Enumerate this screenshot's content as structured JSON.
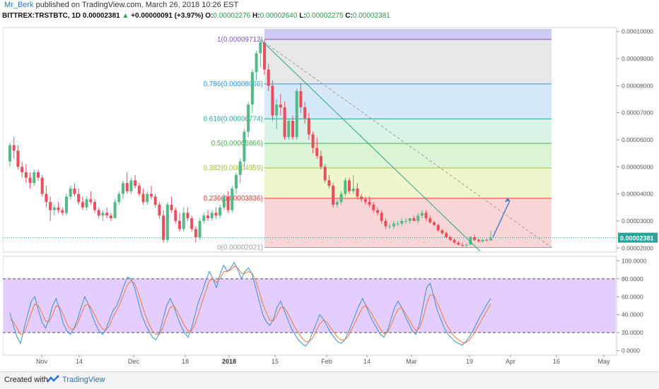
{
  "header": {
    "user": "Mr_Berk",
    "published": "published on TradingView.com, March 26, 2018 10:26 EST",
    "symbol": "BITTREX:TRSTBTC, 1D",
    "last": "0.00002381",
    "change": "+0.00000091 (+3.97%)",
    "o_label": "O:",
    "o_val": "0.00002276",
    "h_label": "H:",
    "h_val": "0.00002640",
    "l_label": "L:",
    "l_val": "0.00002275",
    "c_label": "C:",
    "c_val": "0.00002381"
  },
  "footer": {
    "created_with": "Created with",
    "brand": "TradingView"
  },
  "colors": {
    "up": "#53b987",
    "down": "#eb4d5c",
    "rsi_k": "#3b8fd8",
    "rsi_d": "#f0793a",
    "trend": "#2aa87c",
    "arrow": "#4a7fd0",
    "price_line": "#26a69a",
    "rsi_band": "#d9b8ff"
  },
  "chart_data": [
    {
      "type": "candlestick",
      "title": "BITTREX:TRSTBTC, 1D",
      "price_axis_ticks": [
        "0.00010000",
        "0.00009000",
        "0.00008000",
        "0.00007000",
        "0.00006000",
        "0.00005000",
        "0.00004000",
        "0.00003000",
        "0.00002000"
      ],
      "price_axis_values": [
        0.0001,
        9e-05,
        8e-05,
        7e-05,
        6e-05,
        5e-05,
        4e-05,
        3e-05,
        2e-05
      ],
      "x_axis_ticks": [
        "Nov",
        "14",
        "Dec",
        "18",
        "2018",
        "15",
        "Feb",
        "14",
        "Mar",
        "19",
        "Apr",
        "16",
        "May"
      ],
      "ylim": [
        1.85e-05,
        0.0001015
      ],
      "last_price_label": "0.00002381",
      "last_price": 2.381e-05,
      "fibonacci": [
        {
          "label": "1(0.00009712)",
          "level": 9.712e-05,
          "color": "#7e57c2",
          "fill": "#c9c4f5"
        },
        {
          "label": "0.786(0.00008066)",
          "level": 8.066e-05,
          "color": "#2196f3",
          "fill": "#e3e3e3"
        },
        {
          "label": "0.618(0.00006774)",
          "level": 6.774e-05,
          "color": "#26a69a",
          "fill": "#cfe5f7"
        },
        {
          "label": "0.5(0.00005866)",
          "level": 5.866e-05,
          "color": "#4caf50",
          "fill": "#d2f1e3"
        },
        {
          "label": "0.382(0.00004959)",
          "level": 4.959e-05,
          "color": "#9bc53d",
          "fill": "#d6f2cf"
        },
        {
          "label": "0.236(0.00003836)",
          "level": 3.836e-05,
          "color": "#e53935",
          "fill": "#ecf5c6"
        },
        {
          "label": "0(0.00002021)",
          "level": 2.021e-05,
          "color": "#9e9e9e",
          "fill": "#f7cfd0"
        }
      ],
      "candles_ohlc": [
        [
          5.2e-05,
          5.9e-05,
          5e-05,
          5.8e-05
        ],
        [
          5.8e-05,
          6.1e-05,
          5.3e-05,
          5.6e-05
        ],
        [
          5.6e-05,
          5.8e-05,
          4.9e-05,
          5e-05
        ],
        [
          5e-05,
          5.2e-05,
          4.6e-05,
          4.8e-05
        ],
        [
          4.8e-05,
          5.1e-05,
          4.4e-05,
          4.6e-05
        ],
        [
          4.6e-05,
          4.8e-05,
          4.2e-05,
          4.4e-05
        ],
        [
          4.4e-05,
          4.9e-05,
          4.3e-05,
          4.8e-05
        ],
        [
          4.8e-05,
          4.9e-05,
          4.5e-05,
          4.6e-05
        ],
        [
          4.6e-05,
          4.7e-05,
          3.9e-05,
          4e-05
        ],
        [
          4e-05,
          4.3e-05,
          3.5e-05,
          3.7e-05
        ],
        [
          3.7e-05,
          3.9e-05,
          3e-05,
          3.4e-05
        ],
        [
          3.4e-05,
          3.6e-05,
          3.2e-05,
          3.5e-05
        ],
        [
          3.5e-05,
          3.7e-05,
          3.3e-05,
          3.4e-05
        ],
        [
          3.4e-05,
          3.5e-05,
          3.2e-05,
          3.3e-05
        ],
        [
          3.3e-05,
          4e-05,
          3.2e-05,
          3.9e-05
        ],
        [
          3.9e-05,
          4.3e-05,
          3.8e-05,
          4.2e-05
        ],
        [
          4.2e-05,
          4.4e-05,
          3.9e-05,
          4e-05
        ],
        [
          4e-05,
          4.2e-05,
          3.6e-05,
          3.7e-05
        ],
        [
          3.7e-05,
          3.9e-05,
          3.4e-05,
          3.5e-05
        ],
        [
          3.5e-05,
          3.9e-05,
          3.4e-05,
          3.8e-05
        ],
        [
          3.8e-05,
          4.1e-05,
          3.6e-05,
          3.7e-05
        ],
        [
          3.7e-05,
          3.8e-05,
          3.3e-05,
          3.4e-05
        ],
        [
          3.4e-05,
          3.5e-05,
          3.1e-05,
          3.2e-05
        ],
        [
          3.2e-05,
          3.4e-05,
          3e-05,
          3.3e-05
        ],
        [
          3.3e-05,
          3.5e-05,
          3.1e-05,
          3.2e-05
        ],
        [
          3.2e-05,
          3.3e-05,
          3e-05,
          3.1e-05
        ],
        [
          3.1e-05,
          3.8e-05,
          3.1e-05,
          3.7e-05
        ],
        [
          3.7e-05,
          4.1e-05,
          3.6e-05,
          4e-05
        ],
        [
          4e-05,
          4.5e-05,
          3.8e-05,
          4.4e-05
        ],
        [
          4.4e-05,
          4.8e-05,
          4e-05,
          4.1e-05
        ],
        [
          4.1e-05,
          4.6e-05,
          4e-05,
          4.5e-05
        ],
        [
          4.5e-05,
          4.7e-05,
          4.2e-05,
          4.3e-05
        ],
        [
          4.3e-05,
          4.4e-05,
          3.9e-05,
          4e-05
        ],
        [
          4e-05,
          4.2e-05,
          3.6e-05,
          3.7e-05
        ],
        [
          3.7e-05,
          4.1e-05,
          3.6e-05,
          4e-05
        ],
        [
          4e-05,
          4.3e-05,
          3.8e-05,
          3.9e-05
        ],
        [
          3.9e-05,
          4e-05,
          3.5e-05,
          3.6e-05
        ],
        [
          3.6e-05,
          3.7e-05,
          3.1e-05,
          3.2e-05
        ],
        [
          3.2e-05,
          3.4e-05,
          2.2e-05,
          2.3e-05
        ],
        [
          2.3e-05,
          3.7e-05,
          2.2e-05,
          3.6e-05
        ],
        [
          3.6e-05,
          3.9e-05,
          3.3e-05,
          3.4e-05
        ],
        [
          3.4e-05,
          3.5e-05,
          2.9e-05,
          3e-05
        ],
        [
          3e-05,
          3.3e-05,
          2.6e-05,
          2.7e-05
        ],
        [
          2.7e-05,
          3.5e-05,
          2.6e-05,
          3.3e-05
        ],
        [
          3.3e-05,
          3.5e-05,
          3e-05,
          3.1e-05
        ],
        [
          3.1e-05,
          3.2e-05,
          2.6e-05,
          2.7e-05
        ],
        [
          2.7e-05,
          2.8e-05,
          2.2e-05,
          2.4e-05
        ],
        [
          2.4e-05,
          3.1e-05,
          2.3e-05,
          3e-05
        ],
        [
          3e-05,
          3.3e-05,
          2.9e-05,
          3.2e-05
        ],
        [
          3.2e-05,
          3.4e-05,
          3e-05,
          3.1e-05
        ],
        [
          3.1e-05,
          3.4e-05,
          3e-05,
          3.3e-05
        ],
        [
          3.3e-05,
          3.5e-05,
          3.1e-05,
          3.2e-05
        ],
        [
          3.2e-05,
          3.6e-05,
          3.1e-05,
          3.5e-05
        ],
        [
          3.5e-05,
          4e-05,
          3.4e-05,
          3.9e-05
        ],
        [
          3.9e-05,
          4.1e-05,
          3.3e-05,
          3.4e-05
        ],
        [
          3.4e-05,
          4.3e-05,
          3.3e-05,
          4.2e-05
        ],
        [
          4.2e-05,
          4.8e-05,
          4e-05,
          4.7e-05
        ],
        [
          4.7e-05,
          5.3e-05,
          4.4e-05,
          5.2e-05
        ],
        [
          5.2e-05,
          6.4e-05,
          5e-05,
          6.3e-05
        ],
        [
          6.3e-05,
          7.4e-05,
          6.1e-05,
          7.3e-05
        ],
        [
          7.3e-05,
          8.6e-05,
          7e-05,
          8.5e-05
        ],
        [
          8.5e-05,
          9.3e-05,
          8.2e-05,
          9.2e-05
        ],
        [
          9.2e-05,
          9.71e-05,
          8.7e-05,
          9.6e-05
        ],
        [
          9.6e-05,
          9.7e-05,
          8.4e-05,
          8.6e-05
        ],
        [
          8.6e-05,
          8.8e-05,
          7.8e-05,
          8e-05
        ],
        [
          8e-05,
          8.2e-05,
          6.7e-05,
          6.9e-05
        ],
        [
          6.9e-05,
          7.5e-05,
          6.4e-05,
          7.3e-05
        ],
        [
          7.3e-05,
          7.7e-05,
          6.9e-05,
          7.2e-05
        ],
        [
          7.2e-05,
          7.4e-05,
          6e-05,
          6.1e-05
        ],
        [
          6.1e-05,
          6.8e-05,
          6e-05,
          6.7e-05
        ],
        [
          6.7e-05,
          6.9e-05,
          6e-05,
          6.1e-05
        ],
        [
          6.1e-05,
          7.9e-05,
          6e-05,
          7.8e-05
        ],
        [
          7.8e-05,
          8.1e-05,
          7e-05,
          7.2e-05
        ],
        [
          7.2e-05,
          7.4e-05,
          6.6e-05,
          6.8e-05
        ],
        [
          6.8e-05,
          7e-05,
          6e-05,
          6.2e-05
        ],
        [
          6.2e-05,
          6.3e-05,
          5.5e-05,
          5.7e-05
        ],
        [
          5.7e-05,
          6.1e-05,
          5.3e-05,
          5.4e-05
        ],
        [
          5.4e-05,
          5.6e-05,
          4.9e-05,
          5e-05
        ],
        [
          5e-05,
          5.1e-05,
          4.4e-05,
          4.5e-05
        ],
        [
          4.5e-05,
          4.7e-05,
          4.2e-05,
          4.3e-05
        ],
        [
          4.3e-05,
          4.4e-05,
          3.5e-05,
          3.6e-05
        ],
        [
          3.6e-05,
          3.8e-05,
          3.5e-05,
          3.7e-05
        ],
        [
          3.7e-05,
          4.1e-05,
          3.6e-05,
          4e-05
        ],
        [
          4e-05,
          4.6e-05,
          3.9e-05,
          4.5e-05
        ],
        [
          4.5e-05,
          4.6e-05,
          4e-05,
          4.1e-05
        ],
        [
          4.1e-05,
          4.7e-05,
          4e-05,
          4.2e-05
        ],
        [
          4.2e-05,
          4.4e-05,
          3.8e-05,
          3.9e-05
        ],
        [
          3.9e-05,
          4e-05,
          3.7e-05,
          3.8e-05
        ],
        [
          3.8e-05,
          3.9e-05,
          3.6e-05,
          3.7e-05
        ],
        [
          3.7e-05,
          3.9e-05,
          3.5e-05,
          3.6e-05
        ],
        [
          3.6e-05,
          3.7e-05,
          3.3e-05,
          3.4e-05
        ],
        [
          3.4e-05,
          3.5e-05,
          3.2e-05,
          3.3e-05
        ],
        [
          3.3e-05,
          3.4e-05,
          2.9e-05,
          3e-05
        ],
        [
          3e-05,
          3.1e-05,
          2.7e-05,
          2.8e-05
        ],
        [
          2.8e-05,
          2.9e-05,
          2.7e-05,
          2.8e-05
        ],
        [
          2.8e-05,
          3e-05,
          2.7e-05,
          2.9e-05
        ],
        [
          2.9e-05,
          3e-05,
          2.8e-05,
          2.9e-05
        ],
        [
          2.9e-05,
          3.1e-05,
          2.8e-05,
          3e-05
        ],
        [
          3e-05,
          3.1e-05,
          2.9e-05,
          3e-05
        ],
        [
          3e-05,
          3.1e-05,
          2.9e-05,
          3.1e-05
        ],
        [
          3.1e-05,
          3.2e-05,
          3e-05,
          3e-05
        ],
        [
          3e-05,
          3.3e-05,
          2.9e-05,
          3.2e-05
        ],
        [
          3.2e-05,
          3.4e-05,
          3.1e-05,
          3.3e-05
        ],
        [
          3.3e-05,
          3.4e-05,
          3e-05,
          3.1e-05
        ],
        [
          3.1e-05,
          3.2e-05,
          2.9e-05,
          2.95e-05
        ],
        [
          2.95e-05,
          3e-05,
          2.8e-05,
          2.85e-05
        ],
        [
          2.85e-05,
          2.9e-05,
          2.6e-05,
          2.65e-05
        ],
        [
          2.65e-05,
          2.7e-05,
          2.5e-05,
          2.55e-05
        ],
        [
          2.55e-05,
          2.6e-05,
          2.35e-05,
          2.4e-05
        ],
        [
          2.4e-05,
          2.45e-05,
          2.25e-05,
          2.3e-05
        ],
        [
          2.3e-05,
          2.35e-05,
          2.15e-05,
          2.2e-05
        ],
        [
          2.2e-05,
          2.25e-05,
          2.1e-05,
          2.12e-05
        ],
        [
          2.12e-05,
          2.2e-05,
          2.03e-05,
          2.1e-05
        ],
        [
          2.1e-05,
          2.15e-05,
          2.021e-05,
          2.13e-05
        ],
        [
          2.13e-05,
          2.45e-05,
          2.1e-05,
          2.4e-05
        ],
        [
          2.4e-05,
          2.5e-05,
          2.25e-05,
          2.3e-05
        ],
        [
          2.3e-05,
          2.35e-05,
          2.2e-05,
          2.25e-05
        ],
        [
          2.25e-05,
          2.35e-05,
          2.2e-05,
          2.3e-05
        ],
        [
          2.3e-05,
          2.34e-05,
          2.25e-05,
          2.28e-05
        ],
        [
          2.28e-05,
          2.64e-05,
          2.275e-05,
          2.381e-05
        ]
      ]
    },
    {
      "type": "line",
      "title": "",
      "y_axis_ticks": [
        "100.0000",
        "80.0000",
        "60.0000",
        "40.0000",
        "20.0000",
        "0.0000"
      ],
      "y_axis_values": [
        100,
        80,
        60,
        40,
        20,
        0
      ],
      "ylim": [
        -5,
        105
      ],
      "bands": [
        80,
        20
      ],
      "series": [
        {
          "values": [
            42,
            28,
            15,
            8,
            25,
            40,
            55,
            60,
            45,
            32,
            25,
            35,
            50,
            58,
            45,
            30,
            22,
            18,
            25,
            35,
            48,
            60,
            52,
            40,
            30,
            22,
            18,
            24,
            35,
            45,
            50,
            60,
            72,
            82,
            80,
            70,
            55,
            40,
            30,
            22,
            15,
            12,
            20,
            35,
            50,
            58,
            50,
            38,
            28,
            20,
            15,
            25,
            40,
            55,
            65,
            78,
            88,
            80,
            70,
            85,
            95,
            88,
            92,
            98,
            90,
            80,
            88,
            92,
            85,
            70,
            55,
            40,
            32,
            28,
            35,
            48,
            55,
            45,
            35,
            25,
            18,
            12,
            8,
            5,
            10,
            20,
            30,
            40,
            35,
            28,
            20,
            15,
            10,
            8,
            12,
            20,
            30,
            40,
            50,
            58,
            50,
            40,
            32,
            25,
            18,
            15,
            22,
            35,
            48,
            55,
            48,
            38,
            30,
            22,
            18,
            30,
            50,
            70,
            75,
            60,
            45,
            35,
            25,
            18,
            14,
            10,
            8,
            6,
            10,
            15,
            22,
            30,
            38,
            45,
            52,
            58
          ]
        },
        {
          "values": [
            35,
            32,
            25,
            18,
            20,
            30,
            42,
            52,
            50,
            42,
            33,
            32,
            40,
            50,
            48,
            40,
            30,
            24,
            24,
            30,
            40,
            50,
            52,
            46,
            38,
            30,
            24,
            23,
            28,
            38,
            45,
            53,
            63,
            73,
            78,
            75,
            65,
            52,
            40,
            30,
            22,
            18,
            18,
            26,
            38,
            48,
            50,
            44,
            36,
            28,
            22,
            22,
            30,
            42,
            54,
            66,
            78,
            80,
            76,
            80,
            88,
            88,
            90,
            94,
            92,
            86,
            86,
            88,
            86,
            78,
            66,
            52,
            42,
            34,
            33,
            40,
            48,
            48,
            42,
            34,
            26,
            20,
            14,
            10,
            10,
            14,
            22,
            30,
            34,
            32,
            26,
            20,
            15,
            12,
            12,
            16,
            24,
            32,
            40,
            48,
            50,
            45,
            38,
            31,
            24,
            19,
            20,
            28,
            38,
            46,
            48,
            42,
            35,
            28,
            22,
            25,
            36,
            52,
            62,
            62,
            54,
            44,
            34,
            26,
            20,
            15,
            12,
            9,
            9,
            12,
            17,
            24,
            31,
            38,
            45,
            52
          ]
        }
      ]
    }
  ]
}
